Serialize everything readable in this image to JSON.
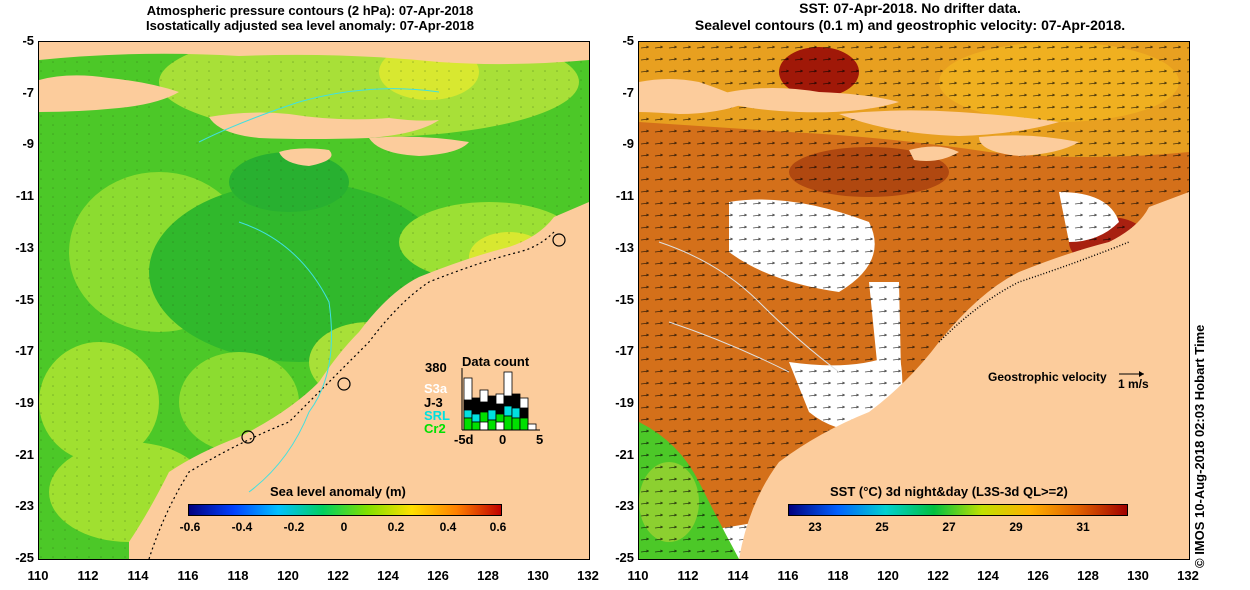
{
  "left_panel": {
    "title_line1": "Atmospheric pressure contours (2 hPa): 07-Apr-2018",
    "title_line2": "Isostatically adjusted sea level anomaly: 07-Apr-2018",
    "colorbar": {
      "label": "Sea level anomaly (m)",
      "ticks": [
        "-0.6",
        "-0.4",
        "-0.2",
        "0",
        "0.2",
        "0.4",
        "0.6"
      ],
      "colors": [
        "#00007f",
        "#0040ff",
        "#00c0ff",
        "#00d060",
        "#80e000",
        "#ffe000",
        "#ff8000",
        "#c00000"
      ]
    },
    "data_count": {
      "title": "Data count",
      "max_label": "380",
      "series": [
        {
          "name": "S3a",
          "color": "#ffffff"
        },
        {
          "name": "J-3",
          "color": "#000000"
        },
        {
          "name": "SRL",
          "color": "#00e0e0"
        },
        {
          "name": "Cr2",
          "color": "#00e000"
        }
      ],
      "x_ticks": [
        "-5d",
        "0",
        "5"
      ]
    },
    "tide_gauges": 3
  },
  "right_panel": {
    "title_line1": "SST: 07-Apr-2018. No drifter data.",
    "title_line2": "Sealevel contours (0.1 m) and geostrophic velocity: 07-Apr-2018.",
    "colorbar": {
      "label": "SST (°C) 3d night&day (L3S-3d QL>=2)",
      "ticks": [
        "23",
        "25",
        "27",
        "29",
        "31"
      ],
      "colors": [
        "#00007f",
        "#0060ff",
        "#00d0d0",
        "#00c040",
        "#c0e000",
        "#ffb000",
        "#e06000",
        "#a00000"
      ]
    },
    "velocity_label": "Geostrophic velocity",
    "velocity_unit": "1 m/s"
  },
  "axes": {
    "y_ticks": [
      "-5",
      "-7",
      "-9",
      "-11",
      "-13",
      "-15",
      "-17",
      "-19",
      "-21",
      "-23",
      "-25"
    ],
    "x_ticks": [
      "110",
      "112",
      "114",
      "116",
      "118",
      "120",
      "122",
      "124",
      "126",
      "128",
      "130",
      "132"
    ]
  },
  "credit": "© IMOS 10-Aug-2018 02:03 Hobart Time",
  "colors": {
    "land": "#fccc9c",
    "ocean_green": "#4cc828",
    "sst_orange": "#d4701a",
    "sst_dark": "#b04810"
  }
}
